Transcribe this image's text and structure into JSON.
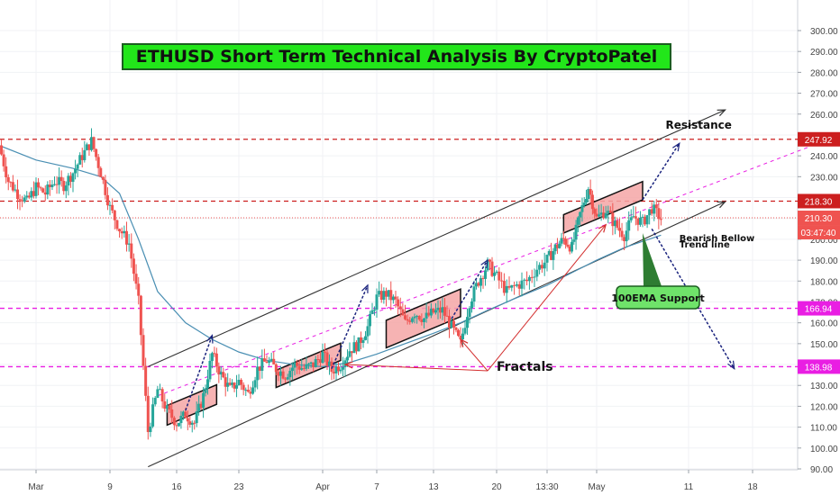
{
  "chart_data": {
    "type": "candlestick",
    "title": "ETHUSD Short Term Technical Analysis By CryptoPatel",
    "ylim": [
      90,
      305
    ],
    "y_ticks": [
      90,
      100,
      110,
      120,
      130,
      140,
      150,
      160,
      170,
      180,
      190,
      200,
      210,
      220,
      230,
      240,
      250,
      260,
      270,
      280,
      290,
      300
    ],
    "y_tick_labels": [
      "90.00",
      "100.00",
      "110.00",
      "120.00",
      "130.00",
      "140.00",
      "150.00",
      "160.00",
      "170.00",
      "180.00",
      "190.00",
      "200.00",
      "210.00",
      "220.00",
      "230.00",
      "240.00",
      "250.00",
      "260.00",
      "270.00",
      "280.00",
      "290.00",
      "300.00"
    ],
    "x_ticks": [
      {
        "label": "Mar",
        "x": 0
      },
      {
        "label": "9",
        "x": 8
      },
      {
        "label": "16",
        "x": 15
      },
      {
        "label": "23",
        "x": 22
      },
      {
        "label": "Apr",
        "x": 31
      },
      {
        "label": "7",
        "x": 37
      },
      {
        "label": "13",
        "x": 43
      },
      {
        "label": "20",
        "x": 50
      },
      {
        "label": "13:30",
        "x": 55
      },
      {
        "label": "May",
        "x": 61
      },
      {
        "label": "11",
        "x": 71
      },
      {
        "label": "18",
        "x": 78
      }
    ],
    "xlim": [
      -4,
      84
    ],
    "price_path": [
      [
        -4,
        245
      ],
      [
        -3,
        228
      ],
      [
        -2,
        222
      ],
      [
        -1,
        218
      ],
      [
        0,
        225
      ],
      [
        1,
        222
      ],
      [
        2,
        228
      ],
      [
        3,
        226
      ],
      [
        4,
        232
      ],
      [
        5,
        240
      ],
      [
        6,
        247
      ],
      [
        7,
        232
      ],
      [
        8,
        215
      ],
      [
        9,
        205
      ],
      [
        10,
        198
      ],
      [
        11,
        170
      ],
      [
        12,
        108
      ],
      [
        13,
        128
      ],
      [
        14,
        118
      ],
      [
        15,
        112
      ],
      [
        16,
        116
      ],
      [
        17,
        112
      ],
      [
        18,
        125
      ],
      [
        19,
        145
      ],
      [
        20,
        135
      ],
      [
        21,
        128
      ],
      [
        22,
        132
      ],
      [
        23,
        126
      ],
      [
        24,
        138
      ],
      [
        25,
        142
      ],
      [
        26,
        138
      ],
      [
        27,
        135
      ],
      [
        28,
        140
      ],
      [
        29,
        138
      ],
      [
        30,
        140
      ],
      [
        31,
        145
      ],
      [
        32,
        137
      ],
      [
        33,
        140
      ],
      [
        34,
        147
      ],
      [
        35,
        150
      ],
      [
        36,
        158
      ],
      [
        37,
        172
      ],
      [
        38,
        174
      ],
      [
        39,
        170
      ],
      [
        40,
        160
      ],
      [
        41,
        165
      ],
      [
        42,
        162
      ],
      [
        43,
        165
      ],
      [
        44,
        166
      ],
      [
        45,
        158
      ],
      [
        46,
        150
      ],
      [
        47,
        170
      ],
      [
        48,
        180
      ],
      [
        49,
        188
      ],
      [
        50,
        182
      ],
      [
        51,
        175
      ],
      [
        52,
        178
      ],
      [
        53,
        180
      ],
      [
        54,
        186
      ],
      [
        55,
        190
      ],
      [
        56,
        196
      ],
      [
        57,
        200
      ],
      [
        58,
        196
      ],
      [
        59,
        212
      ],
      [
        60,
        225
      ],
      [
        61,
        210
      ],
      [
        62,
        214
      ],
      [
        63,
        207
      ],
      [
        64,
        202
      ],
      [
        65,
        211
      ],
      [
        66,
        208
      ],
      [
        67,
        215
      ],
      [
        68,
        210
      ]
    ],
    "ema_path": [
      [
        -4,
        245
      ],
      [
        0,
        238
      ],
      [
        4,
        234
      ],
      [
        7,
        230
      ],
      [
        9,
        222
      ],
      [
        11,
        200
      ],
      [
        13,
        175
      ],
      [
        16,
        160
      ],
      [
        19,
        152
      ],
      [
        22,
        146
      ],
      [
        25,
        142
      ],
      [
        28,
        140
      ],
      [
        31,
        139
      ],
      [
        34,
        141
      ],
      [
        37,
        145
      ],
      [
        40,
        150
      ],
      [
        43,
        155
      ],
      [
        46,
        160
      ],
      [
        49,
        166
      ],
      [
        52,
        172
      ],
      [
        55,
        178
      ],
      [
        58,
        184
      ],
      [
        61,
        190
      ],
      [
        64,
        196
      ],
      [
        66,
        199
      ],
      [
        68,
        202
      ]
    ],
    "levels": [
      {
        "label": "247.92",
        "value": 247.92,
        "color": "#cc1f1f",
        "style": "dash"
      },
      {
        "label": "218.30",
        "value": 218.3,
        "color": "#cc1f1f",
        "style": "dash"
      },
      {
        "label": "210.30",
        "value": 210.3,
        "color": "#ef5350",
        "style": "dot"
      },
      {
        "label": "166.94",
        "value": 166.94,
        "color": "#e91ee3",
        "style": "dash"
      },
      {
        "label": "138.98",
        "value": 138.98,
        "color": "#e91ee3",
        "style": "dash"
      }
    ],
    "time_label": "03:47:40",
    "channel": {
      "upper": [
        [
          12,
          139
        ],
        [
          75,
          262
        ]
      ],
      "lower": [
        [
          12,
          91
        ],
        [
          75,
          218
        ]
      ],
      "mid": [
        [
          13,
          125
        ],
        [
          84,
          244
        ]
      ]
    },
    "fractal_boxes": [
      {
        "x0": 14,
        "x1": 19.5,
        "lo": 111,
        "hi": 128
      },
      {
        "x0": 26,
        "x1": 33,
        "lo": 129,
        "hi": 144
      },
      {
        "x0": 38,
        "x1": 46,
        "lo": 148,
        "hi": 172
      },
      {
        "x0": 57,
        "x1": 66,
        "lo": 203,
        "hi": 219
      }
    ],
    "arrows_up": [
      [
        [
          16,
          118
        ],
        [
          19,
          154
        ]
      ],
      [
        [
          32,
          138
        ],
        [
          36,
          178
        ]
      ],
      [
        [
          45,
          162
        ],
        [
          49,
          190
        ]
      ],
      [
        [
          66,
          219
        ],
        [
          70,
          246
        ]
      ]
    ],
    "projection": [
      [
        67,
        205
      ],
      [
        76,
        138
      ]
    ],
    "annotations": [
      {
        "text": "Resistance",
        "x": 68.5,
        "y": 253
      },
      {
        "text": "Bearish Bellow",
        "x": 70,
        "y": 199
      },
      {
        "text": "Trend line",
        "x": 70,
        "y": 196
      },
      {
        "text": "Fractals",
        "x": 50,
        "y": 137
      }
    ],
    "ema_label": "100EMA Support",
    "colors": {
      "up": "#26a69a",
      "down": "#ef5350",
      "ema": "#4a8fb3",
      "channel": "#333333",
      "mid": "#e91ee3",
      "arrow": "#1a237e",
      "box_fill": "#f4a6a6",
      "title_bg": "#22e61a",
      "ema_box": "#6fe36a"
    }
  }
}
